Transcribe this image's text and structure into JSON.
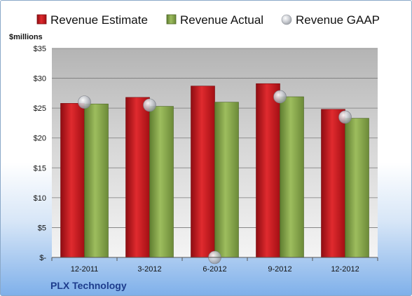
{
  "colors": {
    "estimate": "#c8141a",
    "actual": "#86a84a",
    "gaap": "#b8bcc4",
    "company": "#1d3c8c"
  },
  "chart_data": {
    "type": "bar",
    "ylabel": "$millions",
    "company": "PLX Technology",
    "ylim": [
      0,
      35
    ],
    "yticks": [
      {
        "value": 0,
        "label": "$-"
      },
      {
        "value": 5,
        "label": "$5"
      },
      {
        "value": 10,
        "label": "$10"
      },
      {
        "value": 15,
        "label": "$15"
      },
      {
        "value": 20,
        "label": "$20"
      },
      {
        "value": 25,
        "label": "$25"
      },
      {
        "value": 30,
        "label": "$30"
      },
      {
        "value": 35,
        "label": "$35"
      }
    ],
    "grid": true,
    "legend_position": "top",
    "categories": [
      "12-2011",
      "3-2012",
      "6-2012",
      "9-2012",
      "12-2012"
    ],
    "series": [
      {
        "name": "Revenue Estimate",
        "kind": "bar",
        "values": [
          25.8,
          26.8,
          28.7,
          29.1,
          24.8
        ]
      },
      {
        "name": "Revenue Actual",
        "kind": "bar",
        "values": [
          25.7,
          25.3,
          26.0,
          26.9,
          23.3
        ]
      },
      {
        "name": "Revenue GAAP",
        "kind": "marker",
        "values": [
          26.0,
          25.5,
          0.0,
          26.9,
          23.5
        ]
      }
    ]
  }
}
